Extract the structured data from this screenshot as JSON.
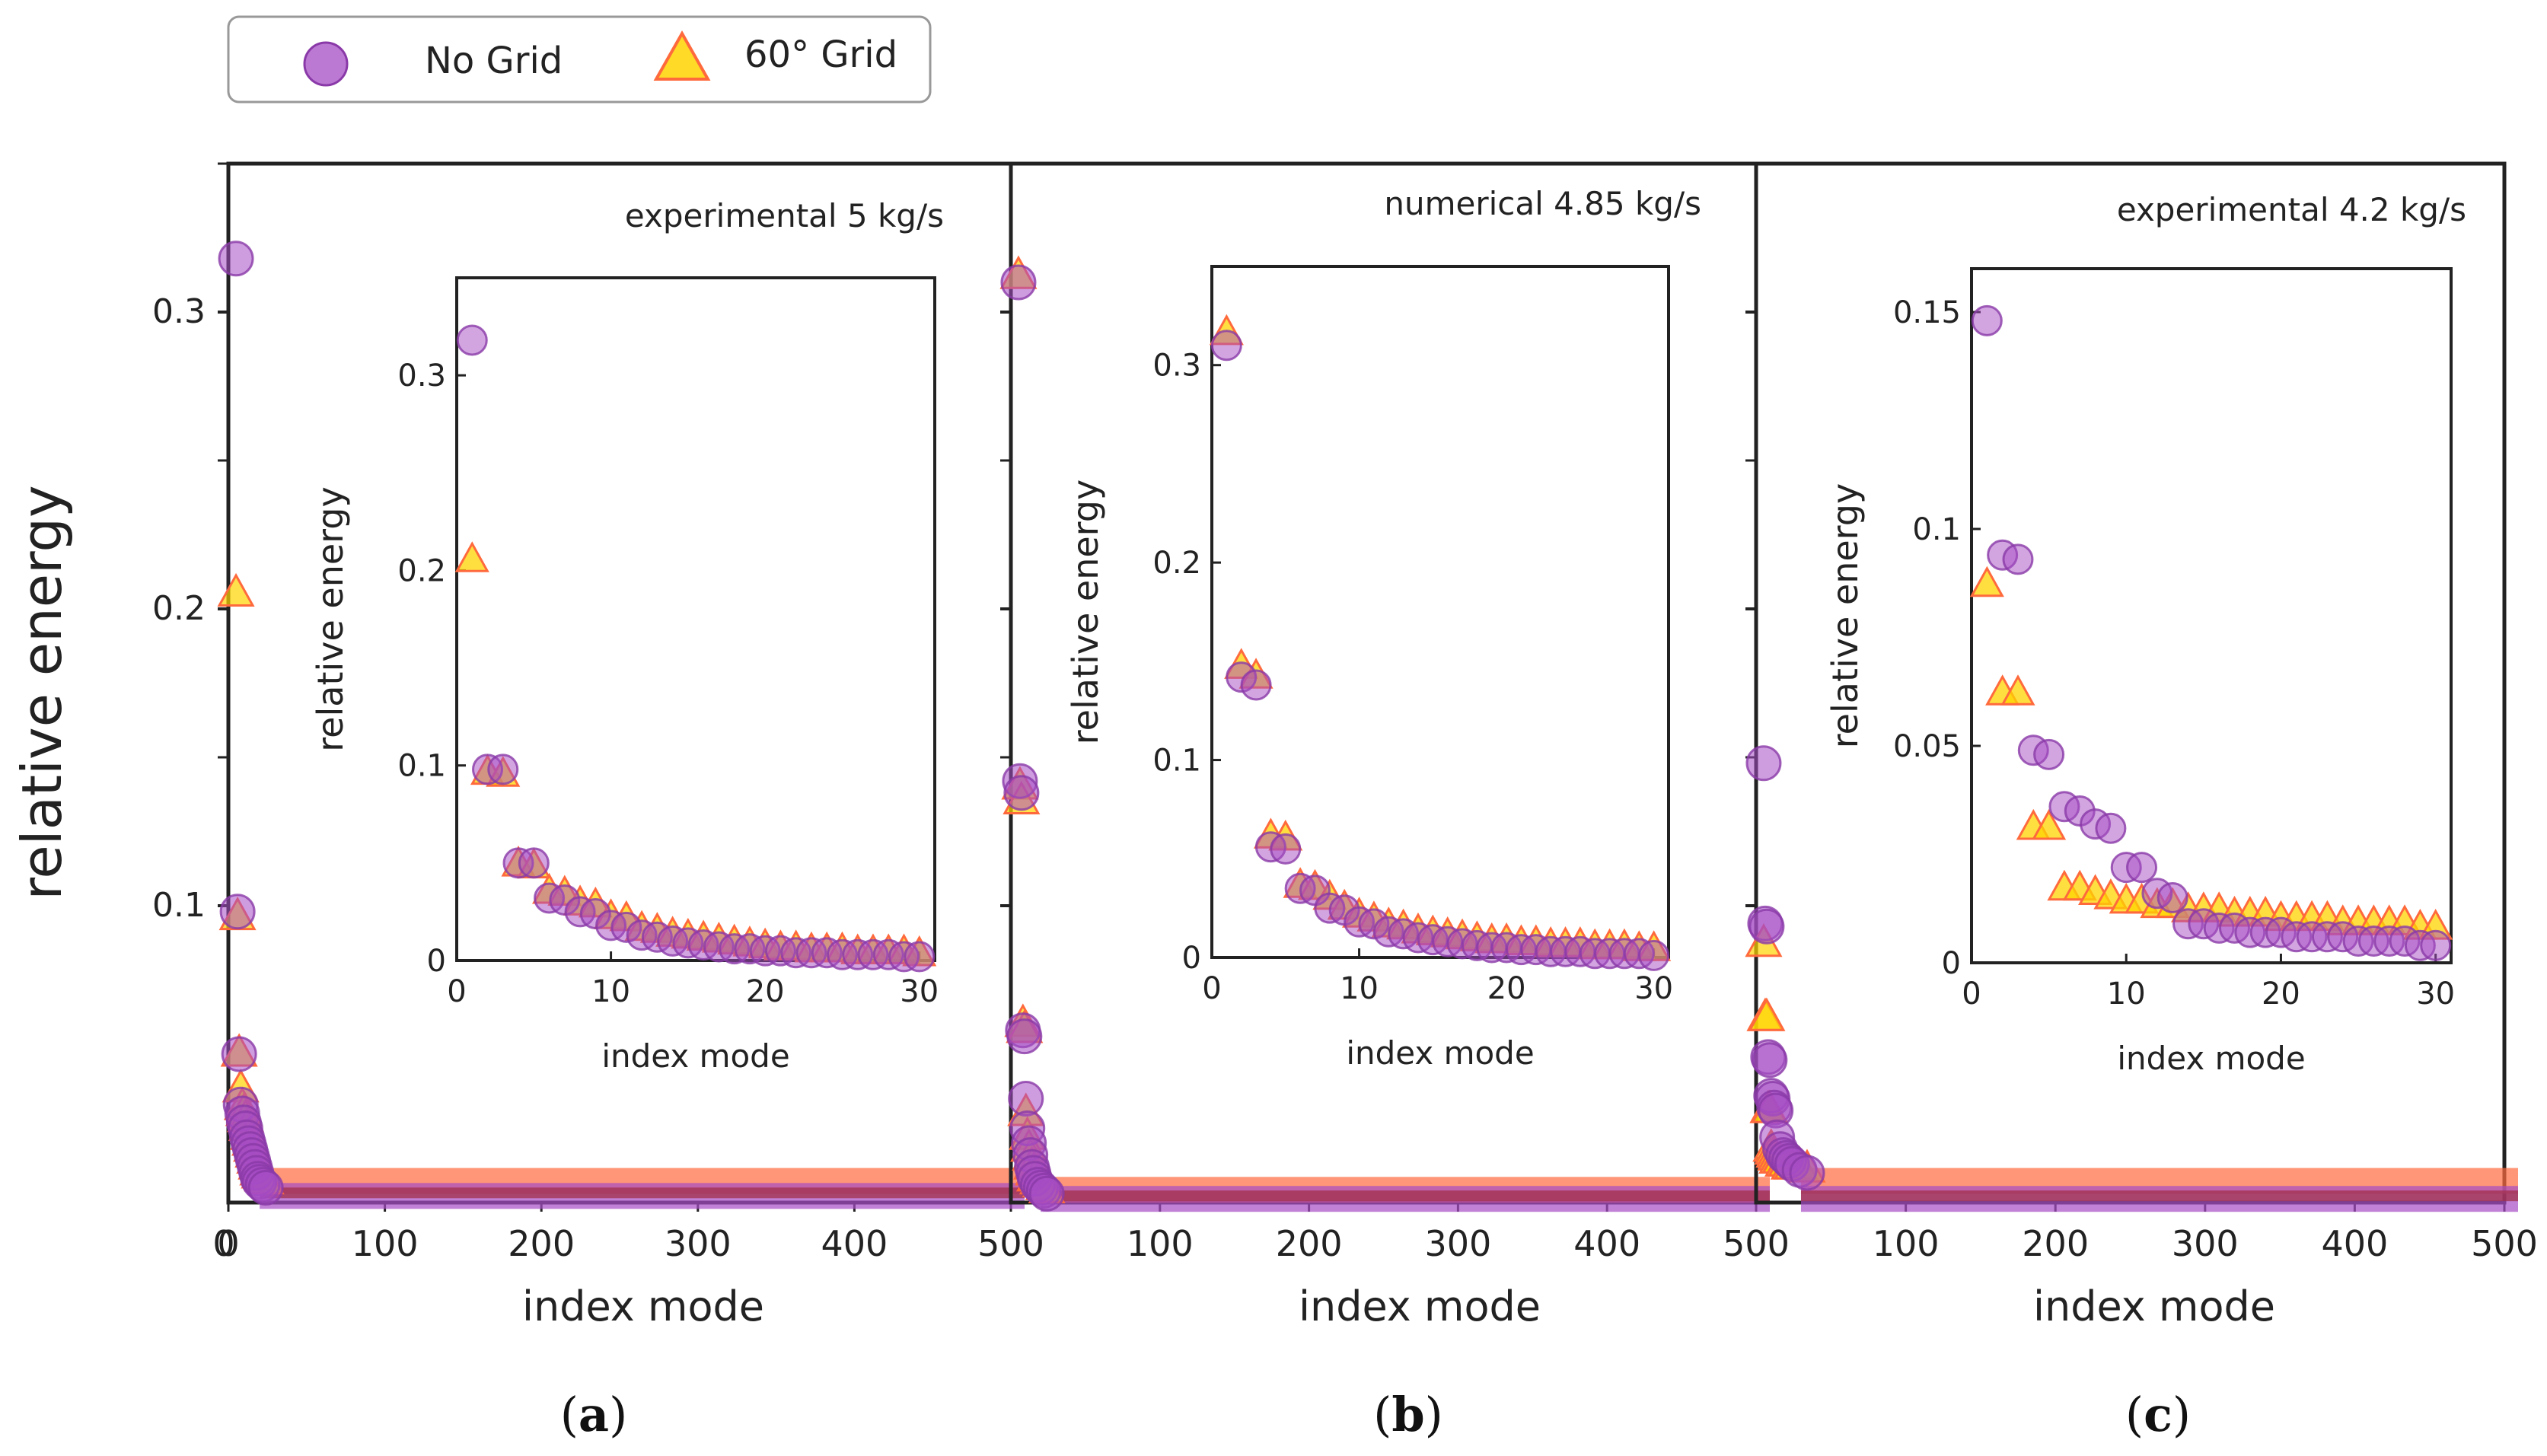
{
  "legend": {
    "items": [
      {
        "label": "No Grid",
        "marker": "circle"
      },
      {
        "label": "60° Grid",
        "marker": "triangle"
      }
    ]
  },
  "colors": {
    "no_grid_fill": "#a64cc4",
    "no_grid_edge": "#8a3aa8",
    "grid_fill": "#ffd400",
    "grid_edge": "#ff6a3d",
    "overlap": "#a0304a",
    "frame": "#222222"
  },
  "y_axis_label": "relative energy",
  "chart_data": [
    {
      "panel": "a",
      "caption": "(a)",
      "type": "scatter",
      "annotation": "experimental  5 kg/s",
      "xlabel": "index mode",
      "ylabel": "relative energy",
      "xlim": [
        0,
        500
      ],
      "ylim": [
        0,
        0.35
      ],
      "xticks": [
        "0",
        "100",
        "200",
        "300",
        "400",
        "500"
      ],
      "xtick_values": [
        0,
        100,
        200,
        300,
        400,
        500
      ],
      "yticks": [
        "0.1",
        "0.2",
        "0.3"
      ],
      "ytick_values": [
        0.1,
        0.2,
        0.3
      ],
      "series": [
        {
          "name": "No Grid",
          "x": [
            1,
            2,
            3,
            4,
            5,
            6,
            7,
            8,
            9,
            10,
            11,
            12,
            13,
            14,
            15,
            16,
            18,
            20
          ],
          "y": [
            0.318,
            0.098,
            0.05,
            0.033,
            0.03,
            0.027,
            0.025,
            0.022,
            0.02,
            0.018,
            0.016,
            0.014,
            0.012,
            0.01,
            0.008,
            0.007,
            0.006,
            0.005
          ],
          "tail_from": 20,
          "tail_y": 0.003
        },
        {
          "name": "60° Grid",
          "x": [
            1,
            2,
            3,
            4,
            5,
            6,
            7,
            8,
            9,
            10,
            11,
            12,
            13,
            14,
            15,
            16,
            18,
            20
          ],
          "y": [
            0.205,
            0.096,
            0.05,
            0.038,
            0.032,
            0.03,
            0.028,
            0.025,
            0.022,
            0.02,
            0.018,
            0.016,
            0.014,
            0.012,
            0.01,
            0.009,
            0.008,
            0.007
          ],
          "tail_from": 20,
          "tail_y": 0.006
        }
      ],
      "inset": {
        "xlabel": "index mode",
        "ylabel": "relative energy",
        "xlim": [
          0,
          31
        ],
        "ylim": [
          0,
          0.35
        ],
        "xticks": [
          "0",
          "10",
          "20",
          "30"
        ],
        "xtick_values": [
          0,
          10,
          20,
          30
        ],
        "yticks": [
          "0",
          "0.1",
          "0.2",
          "0.3"
        ],
        "ytick_values": [
          0,
          0.1,
          0.2,
          0.3
        ],
        "series": [
          {
            "name": "No Grid",
            "x": [
              1,
              2,
              3,
              4,
              5,
              6,
              7,
              8,
              9,
              10,
              11,
              12,
              13,
              14,
              15,
              16,
              17,
              18,
              19,
              20,
              21,
              22,
              23,
              24,
              25,
              26,
              27,
              28,
              29,
              30
            ],
            "y": [
              0.318,
              0.098,
              0.098,
              0.05,
              0.05,
              0.032,
              0.031,
              0.025,
              0.024,
              0.018,
              0.017,
              0.013,
              0.012,
              0.01,
              0.009,
              0.008,
              0.007,
              0.006,
              0.006,
              0.005,
              0.005,
              0.004,
              0.004,
              0.004,
              0.003,
              0.003,
              0.003,
              0.003,
              0.002,
              0.002
            ]
          },
          {
            "name": "60° Grid",
            "x": [
              1,
              2,
              3,
              4,
              5,
              6,
              7,
              8,
              9,
              10,
              11,
              12,
              13,
              14,
              15,
              16,
              17,
              18,
              19,
              20,
              21,
              22,
              23,
              24,
              25,
              26,
              27,
              28,
              29,
              30
            ],
            "y": [
              0.205,
              0.096,
              0.095,
              0.049,
              0.048,
              0.035,
              0.034,
              0.029,
              0.028,
              0.022,
              0.021,
              0.016,
              0.015,
              0.013,
              0.012,
              0.011,
              0.01,
              0.009,
              0.008,
              0.007,
              0.006,
              0.006,
              0.005,
              0.005,
              0.005,
              0.004,
              0.004,
              0.004,
              0.004,
              0.003
            ]
          }
        ]
      }
    },
    {
      "panel": "b",
      "caption": "(b)",
      "type": "scatter",
      "annotation": "numerical  4.85 kg/s",
      "xlabel": "index mode",
      "ylabel": "",
      "xlim": [
        0,
        500
      ],
      "ylim": [
        0,
        0.35
      ],
      "xticks": [
        "100",
        "200",
        "300",
        "400",
        "500"
      ],
      "xtick_values": [
        100,
        200,
        300,
        400,
        500
      ],
      "yticks": [],
      "ytick_values": [],
      "series": [
        {
          "name": "No Grid",
          "x": [
            1,
            2,
            3,
            4,
            5,
            6,
            7,
            8,
            9,
            10,
            11,
            12,
            14,
            16,
            18,
            20
          ],
          "y": [
            0.31,
            0.142,
            0.138,
            0.058,
            0.056,
            0.035,
            0.025,
            0.02,
            0.016,
            0.012,
            0.01,
            0.008,
            0.006,
            0.005,
            0.004,
            0.003
          ],
          "tail_from": 20,
          "tail_y": 0.002
        },
        {
          "name": "60° Grid",
          "x": [
            1,
            2,
            3,
            4,
            5,
            6,
            7,
            8,
            9,
            10,
            11,
            12,
            14,
            16,
            18,
            20
          ],
          "y": [
            0.312,
            0.14,
            0.135,
            0.06,
            0.058,
            0.03,
            0.022,
            0.018,
            0.015,
            0.012,
            0.01,
            0.008,
            0.007,
            0.006,
            0.005,
            0.004
          ],
          "tail_from": 20,
          "tail_y": 0.003
        }
      ],
      "inset": {
        "xlabel": "index mode",
        "ylabel": "relative energy",
        "xlim": [
          0,
          31
        ],
        "ylim": [
          0,
          0.35
        ],
        "xticks": [
          "0",
          "10",
          "20",
          "30"
        ],
        "xtick_values": [
          0,
          10,
          20,
          30
        ],
        "yticks": [
          "0",
          "0.1",
          "0.2",
          "0.3"
        ],
        "ytick_values": [
          0,
          0.1,
          0.2,
          0.3
        ],
        "series": [
          {
            "name": "No Grid",
            "x": [
              1,
              2,
              3,
              4,
              5,
              6,
              7,
              8,
              9,
              10,
              11,
              12,
              13,
              14,
              15,
              16,
              17,
              18,
              19,
              20,
              21,
              22,
              23,
              24,
              25,
              26,
              27,
              28,
              29,
              30
            ],
            "y": [
              0.31,
              0.142,
              0.138,
              0.056,
              0.055,
              0.035,
              0.034,
              0.025,
              0.024,
              0.018,
              0.017,
              0.013,
              0.012,
              0.01,
              0.009,
              0.008,
              0.007,
              0.006,
              0.005,
              0.005,
              0.004,
              0.004,
              0.003,
              0.003,
              0.003,
              0.002,
              0.002,
              0.002,
              0.002,
              0.001
            ]
          },
          {
            "name": "60° Grid",
            "x": [
              1,
              2,
              3,
              4,
              5,
              6,
              7,
              8,
              9,
              10,
              11,
              12,
              13,
              14,
              15,
              16,
              17,
              18,
              19,
              20,
              21,
              22,
              23,
              24,
              25,
              26,
              27,
              28,
              29,
              30
            ],
            "y": [
              0.316,
              0.147,
              0.142,
              0.061,
              0.06,
              0.036,
              0.035,
              0.03,
              0.025,
              0.021,
              0.019,
              0.016,
              0.015,
              0.013,
              0.012,
              0.011,
              0.01,
              0.009,
              0.008,
              0.008,
              0.007,
              0.007,
              0.006,
              0.006,
              0.006,
              0.005,
              0.005,
              0.005,
              0.004,
              0.004
            ]
          }
        ]
      }
    },
    {
      "panel": "c",
      "caption": "(c)",
      "type": "scatter",
      "annotation": "experimental  4.2 kg/s",
      "xlabel": "index mode",
      "ylabel": "",
      "xlim": [
        0,
        500
      ],
      "ylim": [
        0,
        0.35
      ],
      "xticks": [
        "100",
        "200",
        "300",
        "400",
        "500"
      ],
      "xtick_values": [
        100,
        200,
        300,
        400,
        500
      ],
      "yticks": [],
      "ytick_values": [],
      "series": [
        {
          "name": "No Grid",
          "x": [
            1,
            2,
            3,
            4,
            5,
            6,
            7,
            8,
            9,
            10,
            12,
            14,
            16,
            18,
            20,
            25,
            30
          ],
          "y": [
            0.148,
            0.094,
            0.093,
            0.049,
            0.048,
            0.036,
            0.035,
            0.032,
            0.031,
            0.022,
            0.018,
            0.016,
            0.015,
            0.014,
            0.013,
            0.011,
            0.01
          ],
          "tail_from": 30,
          "tail_y": 0.002
        },
        {
          "name": "60° Grid",
          "x": [
            1,
            2,
            3,
            4,
            5,
            6,
            7,
            8,
            9,
            10,
            12,
            14,
            16,
            18,
            20,
            25,
            30
          ],
          "y": [
            0.087,
            0.062,
            0.062,
            0.031,
            0.031,
            0.018,
            0.017,
            0.016,
            0.015,
            0.014,
            0.014,
            0.013,
            0.013,
            0.012,
            0.012,
            0.012,
            0.011
          ],
          "tail_from": 30,
          "tail_y": 0.006
        }
      ],
      "inset": {
        "xlabel": "index mode",
        "ylabel": "relative energy",
        "xlim": [
          0,
          31
        ],
        "ylim": [
          0,
          0.16
        ],
        "xticks": [
          "0",
          "10",
          "20",
          "30"
        ],
        "xtick_values": [
          0,
          10,
          20,
          30
        ],
        "yticks": [
          "0",
          "0.05",
          "0.1",
          "0.15"
        ],
        "ytick_values": [
          0,
          0.05,
          0.1,
          0.15
        ],
        "series": [
          {
            "name": "No Grid",
            "x": [
              1,
              2,
              3,
              4,
              5,
              6,
              7,
              8,
              9,
              10,
              11,
              12,
              13,
              14,
              15,
              16,
              17,
              18,
              19,
              20,
              21,
              22,
              23,
              24,
              25,
              26,
              27,
              28,
              29,
              30
            ],
            "y": [
              0.148,
              0.094,
              0.093,
              0.049,
              0.048,
              0.036,
              0.035,
              0.032,
              0.031,
              0.022,
              0.022,
              0.016,
              0.015,
              0.009,
              0.009,
              0.008,
              0.008,
              0.007,
              0.007,
              0.007,
              0.006,
              0.006,
              0.006,
              0.006,
              0.005,
              0.005,
              0.005,
              0.005,
              0.004,
              0.004
            ]
          },
          {
            "name": "60° Grid",
            "x": [
              1,
              2,
              3,
              4,
              5,
              6,
              7,
              8,
              9,
              10,
              11,
              12,
              13,
              14,
              15,
              16,
              17,
              18,
              19,
              20,
              21,
              22,
              23,
              24,
              25,
              26,
              27,
              28,
              29,
              30
            ],
            "y": [
              0.087,
              0.062,
              0.062,
              0.031,
              0.031,
              0.017,
              0.017,
              0.016,
              0.015,
              0.014,
              0.014,
              0.013,
              0.013,
              0.012,
              0.012,
              0.012,
              0.011,
              0.011,
              0.011,
              0.01,
              0.01,
              0.01,
              0.01,
              0.009,
              0.009,
              0.009,
              0.009,
              0.009,
              0.008,
              0.008
            ]
          }
        ]
      }
    }
  ]
}
